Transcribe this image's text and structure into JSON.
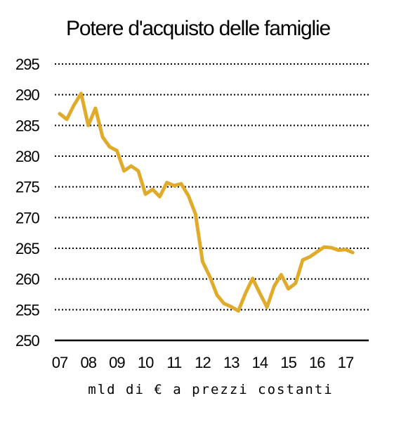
{
  "chart_data": {
    "type": "line",
    "title": "Potere d'acquisto delle famiglie",
    "xlabel": "mld di € a prezzi costanti",
    "ylabel": "",
    "ylim": [
      250,
      295
    ],
    "yticks": [
      250,
      255,
      260,
      265,
      270,
      275,
      280,
      285,
      290,
      295
    ],
    "xticks": [
      {
        "label": "07",
        "x": 2007
      },
      {
        "label": "08",
        "x": 2008
      },
      {
        "label": "09",
        "x": 2009
      },
      {
        "label": "10",
        "x": 2010
      },
      {
        "label": "11",
        "x": 2011
      },
      {
        "label": "12",
        "x": 2012
      },
      {
        "label": "13",
        "x": 2013
      },
      {
        "label": "14",
        "x": 2014
      },
      {
        "label": "15",
        "x": 2015
      },
      {
        "label": "16",
        "x": 2016
      },
      {
        "label": "17",
        "x": 2017
      }
    ],
    "xlim": [
      2006.9,
      2018.0
    ],
    "grid": true,
    "line_color": "#E0AB2B",
    "series": [
      {
        "x": [
          2007.0,
          2007.25,
          2007.5,
          2007.75,
          2008.0,
          2008.25,
          2008.5,
          2008.75,
          2009.0,
          2009.25,
          2009.5,
          2009.75,
          2010.0,
          2010.25,
          2010.5,
          2010.75,
          2011.0,
          2011.25,
          2011.5,
          2011.75,
          2012.0,
          2012.25,
          2012.5,
          2012.75,
          2013.0,
          2013.25,
          2013.5,
          2013.75,
          2014.0,
          2014.25,
          2014.5,
          2014.75,
          2015.0,
          2015.25,
          2015.5,
          2015.75,
          2016.0,
          2016.25,
          2016.5,
          2016.75,
          2017.0,
          2017.25
        ],
        "values": [
          286.9,
          286.0,
          288.3,
          290.2,
          285.0,
          287.8,
          283.1,
          281.5,
          280.9,
          277.6,
          278.4,
          277.6,
          273.8,
          274.6,
          273.4,
          275.7,
          275.2,
          275.5,
          273.6,
          270.6,
          262.8,
          260.4,
          257.4,
          256.0,
          255.5,
          254.8,
          257.7,
          260.1,
          257.7,
          255.4,
          258.8,
          260.7,
          258.4,
          259.3,
          263.1,
          263.6,
          264.4,
          265.2,
          265.1,
          264.7,
          264.8,
          264.3
        ]
      }
    ]
  }
}
